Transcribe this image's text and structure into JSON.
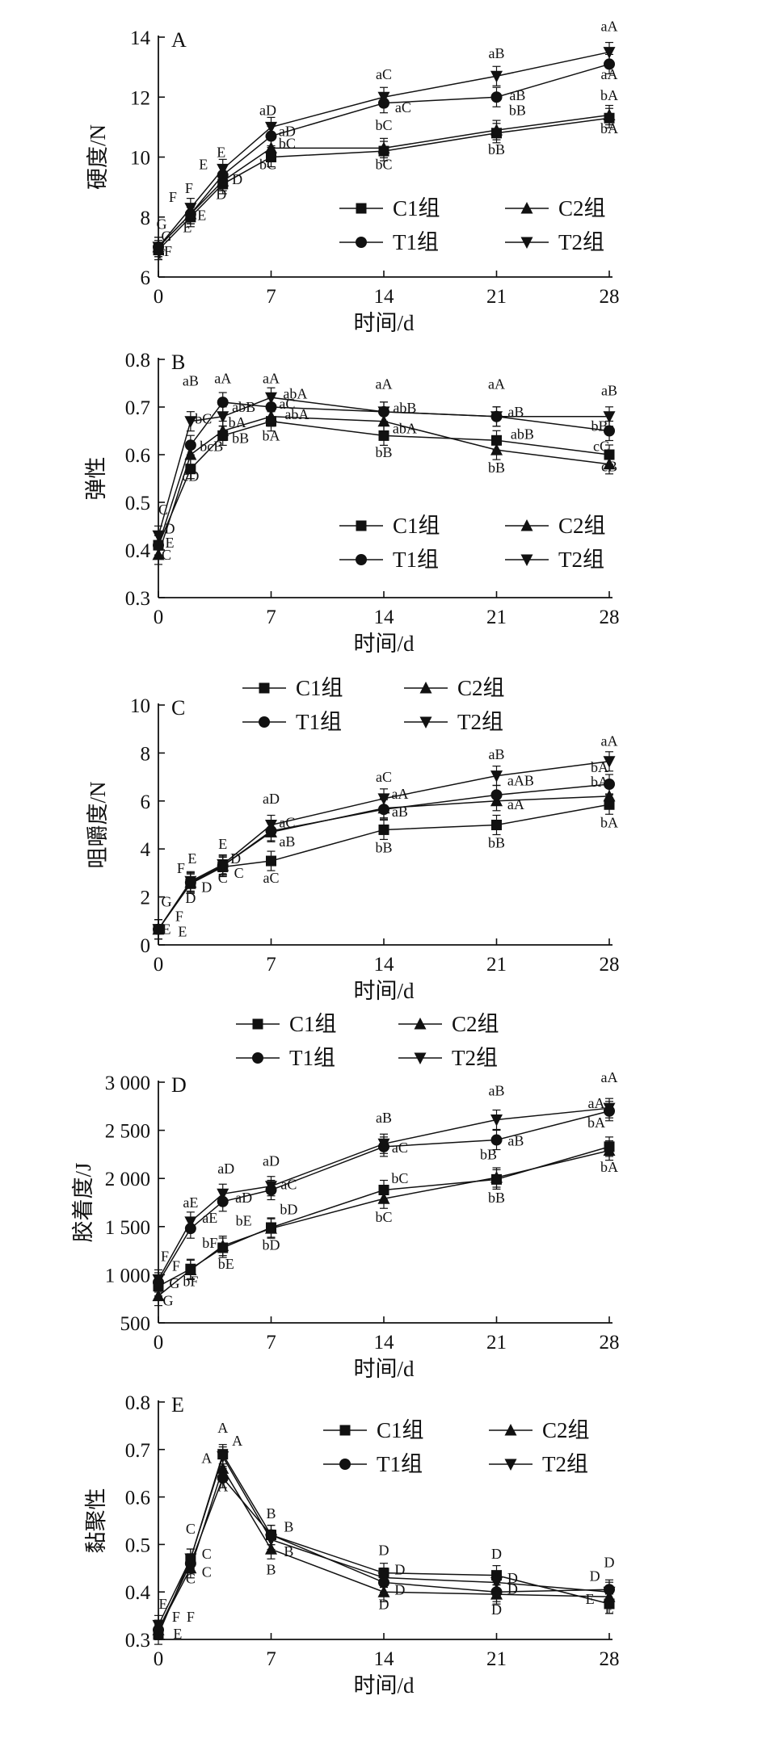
{
  "chart_data": [
    {
      "panel": "A",
      "type": "line",
      "xlabel": "时间/d",
      "ylabel": "硬度/N",
      "x": [
        0,
        2,
        4,
        7,
        14,
        21,
        28
      ],
      "xticks": [
        "0",
        "7",
        "14",
        "21",
        "28"
      ],
      "ylim": [
        6,
        14
      ],
      "yticks": [
        "6",
        "8",
        "10",
        "12",
        "14"
      ],
      "legend": "bottom-right",
      "series": [
        {
          "name": "C1组",
          "marker": "square",
          "values": [
            6.9,
            8.0,
            9.1,
            10.0,
            10.2,
            10.8,
            11.3
          ]
        },
        {
          "name": "C2组",
          "marker": "triangle-up",
          "values": [
            7.0,
            8.1,
            9.2,
            10.3,
            10.3,
            10.9,
            11.4
          ]
        },
        {
          "name": "T1组",
          "marker": "circle",
          "values": [
            7.0,
            8.1,
            9.4,
            10.7,
            11.8,
            12.0,
            13.1
          ]
        },
        {
          "name": "T2组",
          "marker": "triangle-down",
          "values": [
            7.0,
            8.3,
            9.6,
            11.0,
            12.0,
            12.7,
            13.5
          ]
        }
      ],
      "annotations": [
        {
          "text": "G",
          "x": 0.2,
          "y": 7.6
        },
        {
          "text": "G",
          "x": 0.5,
          "y": 7.2
        },
        {
          "text": "F",
          "x": 0.2,
          "y": 6.6
        },
        {
          "text": "F",
          "x": 0.6,
          "y": 6.7
        },
        {
          "text": "F",
          "x": 0.9,
          "y": 8.5
        },
        {
          "text": "F",
          "x": 1.9,
          "y": 8.8
        },
        {
          "text": "E",
          "x": 1.8,
          "y": 7.5
        },
        {
          "text": "E",
          "x": 2.7,
          "y": 7.9
        },
        {
          "text": "E",
          "x": 2.8,
          "y": 9.6
        },
        {
          "text": "E",
          "x": 3.9,
          "y": 10.0
        },
        {
          "text": "D",
          "x": 3.9,
          "y": 8.6
        },
        {
          "text": "D",
          "x": 4.9,
          "y": 9.1
        },
        {
          "text": "aD",
          "x": 6.8,
          "y": 11.4
        },
        {
          "text": "aD",
          "x": 8.0,
          "y": 10.7
        },
        {
          "text": "bC",
          "x": 8.0,
          "y": 10.3
        },
        {
          "text": "bC",
          "x": 6.8,
          "y": 9.6
        },
        {
          "text": "aC",
          "x": 14.0,
          "y": 12.6
        },
        {
          "text": "aC",
          "x": 15.2,
          "y": 11.5
        },
        {
          "text": "bC",
          "x": 14.0,
          "y": 10.9
        },
        {
          "text": "bC",
          "x": 14.0,
          "y": 9.6
        },
        {
          "text": "aB",
          "x": 21.0,
          "y": 13.3
        },
        {
          "text": "aB",
          "x": 22.3,
          "y": 11.9
        },
        {
          "text": "bB",
          "x": 22.3,
          "y": 11.4
        },
        {
          "text": "bB",
          "x": 21.0,
          "y": 10.1
        },
        {
          "text": "aA",
          "x": 28.0,
          "y": 14.2
        },
        {
          "text": "aA",
          "x": 28.0,
          "y": 12.6
        },
        {
          "text": "bA",
          "x": 28.0,
          "y": 11.9
        },
        {
          "text": "bA",
          "x": 28.0,
          "y": 10.8
        }
      ]
    },
    {
      "panel": "B",
      "type": "line",
      "xlabel": "时间/d",
      "ylabel": "弹性",
      "x": [
        0,
        2,
        4,
        7,
        14,
        21,
        28
      ],
      "xticks": [
        "0",
        "7",
        "14",
        "21",
        "28"
      ],
      "ylim": [
        0.3,
        0.8
      ],
      "yticks": [
        "0.3",
        "0.4",
        "0.5",
        "0.6",
        "0.7",
        "0.8"
      ],
      "legend": "bottom-right",
      "series": [
        {
          "name": "C1组",
          "marker": "square",
          "values": [
            0.41,
            0.57,
            0.64,
            0.67,
            0.64,
            0.63,
            0.6
          ]
        },
        {
          "name": "C2组",
          "marker": "triangle-up",
          "values": [
            0.39,
            0.6,
            0.65,
            0.68,
            0.67,
            0.61,
            0.58
          ]
        },
        {
          "name": "T1组",
          "marker": "circle",
          "values": [
            0.41,
            0.62,
            0.71,
            0.7,
            0.69,
            0.68,
            0.65
          ]
        },
        {
          "name": "T2组",
          "marker": "triangle-down",
          "values": [
            0.43,
            0.67,
            0.68,
            0.72,
            0.69,
            0.68,
            0.68
          ]
        }
      ],
      "annotations": [
        {
          "text": "aB",
          "x": 2.0,
          "y": 0.745
        },
        {
          "text": "bC",
          "x": 2.8,
          "y": 0.665
        },
        {
          "text": "bcB",
          "x": 3.3,
          "y": 0.608
        },
        {
          "text": "cD",
          "x": 2.0,
          "y": 0.545
        },
        {
          "text": "aA",
          "x": 4.0,
          "y": 0.75
        },
        {
          "text": "abB",
          "x": 5.3,
          "y": 0.69
        },
        {
          "text": "bA",
          "x": 4.9,
          "y": 0.658
        },
        {
          "text": "bB",
          "x": 5.1,
          "y": 0.625
        },
        {
          "text": "aA",
          "x": 7.0,
          "y": 0.75
        },
        {
          "text": "abA",
          "x": 8.5,
          "y": 0.718
        },
        {
          "text": "aC",
          "x": 8.0,
          "y": 0.697
        },
        {
          "text": "abA",
          "x": 8.6,
          "y": 0.675
        },
        {
          "text": "bA",
          "x": 7.0,
          "y": 0.63
        },
        {
          "text": "aA",
          "x": 14.0,
          "y": 0.738
        },
        {
          "text": "abB",
          "x": 15.3,
          "y": 0.688
        },
        {
          "text": "abA",
          "x": 15.3,
          "y": 0.645
        },
        {
          "text": "bB",
          "x": 14.0,
          "y": 0.595
        },
        {
          "text": "aA",
          "x": 21.0,
          "y": 0.738
        },
        {
          "text": "aB",
          "x": 22.2,
          "y": 0.68
        },
        {
          "text": "abB",
          "x": 22.6,
          "y": 0.633
        },
        {
          "text": "bB",
          "x": 21.0,
          "y": 0.563
        },
        {
          "text": "aB",
          "x": 28.0,
          "y": 0.725
        },
        {
          "text": "bB",
          "x": 27.4,
          "y": 0.65
        },
        {
          "text": "cC",
          "x": 27.5,
          "y": 0.608
        },
        {
          "text": "cB",
          "x": 28.0,
          "y": 0.565
        },
        {
          "text": "C",
          "x": 0.3,
          "y": 0.475
        },
        {
          "text": "D",
          "x": 0.7,
          "y": 0.435
        },
        {
          "text": "E",
          "x": 0.7,
          "y": 0.405
        },
        {
          "text": "C",
          "x": 0.5,
          "y": 0.38
        }
      ]
    },
    {
      "panel": "C",
      "type": "line",
      "xlabel": "时间/d",
      "ylabel": "咀嚼度/N",
      "x": [
        0,
        2,
        4,
        7,
        14,
        21,
        28
      ],
      "xticks": [
        "0",
        "7",
        "14",
        "21",
        "28"
      ],
      "ylim": [
        0,
        10
      ],
      "yticks": [
        "0",
        "2",
        "4",
        "6",
        "8",
        "10"
      ],
      "legend": "top",
      "series": [
        {
          "name": "C1组",
          "marker": "square",
          "values": [
            0.65,
            2.55,
            3.25,
            3.5,
            4.8,
            5.0,
            5.85
          ]
        },
        {
          "name": "C2组",
          "marker": "triangle-up",
          "values": [
            0.65,
            2.6,
            3.3,
            4.7,
            5.7,
            6.0,
            6.2
          ]
        },
        {
          "name": "T1组",
          "marker": "circle",
          "values": [
            0.65,
            2.6,
            3.3,
            4.75,
            5.65,
            6.25,
            6.7
          ]
        },
        {
          "name": "T2组",
          "marker": "triangle-down",
          "values": [
            0.65,
            2.65,
            3.35,
            5.0,
            6.1,
            7.05,
            7.65
          ]
        }
      ],
      "annotations": [
        {
          "text": "G",
          "x": 0.5,
          "y": 1.6
        },
        {
          "text": "F",
          "x": 1.3,
          "y": 1.0
        },
        {
          "text": "E",
          "x": 0.5,
          "y": 0.45
        },
        {
          "text": "E",
          "x": 1.5,
          "y": 0.35
        },
        {
          "text": "F",
          "x": 1.4,
          "y": 3.0
        },
        {
          "text": "E",
          "x": 2.1,
          "y": 3.4
        },
        {
          "text": "D",
          "x": 2.0,
          "y": 1.75
        },
        {
          "text": "D",
          "x": 3.0,
          "y": 2.2
        },
        {
          "text": "E",
          "x": 4.0,
          "y": 4.0
        },
        {
          "text": "D",
          "x": 4.8,
          "y": 3.4
        },
        {
          "text": "C",
          "x": 4.0,
          "y": 2.6
        },
        {
          "text": "C",
          "x": 5.0,
          "y": 2.8
        },
        {
          "text": "aD",
          "x": 7.0,
          "y": 5.9
        },
        {
          "text": "aC",
          "x": 8.0,
          "y": 4.9
        },
        {
          "text": "aB",
          "x": 8.0,
          "y": 4.1
        },
        {
          "text": "aC",
          "x": 7.0,
          "y": 2.6
        },
        {
          "text": "aC",
          "x": 14.0,
          "y": 6.8
        },
        {
          "text": "aA",
          "x": 15.0,
          "y": 6.1
        },
        {
          "text": "aB",
          "x": 15.0,
          "y": 5.35
        },
        {
          "text": "bB",
          "x": 14.0,
          "y": 3.85
        },
        {
          "text": "aB",
          "x": 21.0,
          "y": 7.75
        },
        {
          "text": "aAB",
          "x": 22.5,
          "y": 6.65
        },
        {
          "text": "aA",
          "x": 22.2,
          "y": 5.65
        },
        {
          "text": "bB",
          "x": 21.0,
          "y": 4.05
        },
        {
          "text": "aA",
          "x": 28.0,
          "y": 8.3
        },
        {
          "text": "bA",
          "x": 27.4,
          "y": 7.2
        },
        {
          "text": "bA",
          "x": 27.4,
          "y": 6.6
        },
        {
          "text": "bA",
          "x": 28.0,
          "y": 4.9
        }
      ]
    },
    {
      "panel": "D",
      "type": "line",
      "xlabel": "时间/d",
      "ylabel": "胶着度/J",
      "x": [
        0,
        2,
        4,
        7,
        14,
        21,
        28
      ],
      "xticks": [
        "0",
        "7",
        "14",
        "21",
        "28"
      ],
      "ylim": [
        500,
        3000
      ],
      "yticks": [
        "500",
        "1 000",
        "1 500",
        "2 000",
        "2 500",
        "3 000"
      ],
      "legend": "top",
      "series": [
        {
          "name": "C1组",
          "marker": "square",
          "values": [
            880,
            1060,
            1280,
            1490,
            1880,
            1990,
            2330
          ]
        },
        {
          "name": "C2组",
          "marker": "triangle-up",
          "values": [
            780,
            1050,
            1300,
            1480,
            1790,
            2010,
            2290
          ]
        },
        {
          "name": "T1组",
          "marker": "circle",
          "values": [
            920,
            1480,
            1760,
            1880,
            2330,
            2400,
            2700
          ]
        },
        {
          "name": "T2组",
          "marker": "triangle-down",
          "values": [
            950,
            1550,
            1840,
            1920,
            2360,
            2610,
            2730
          ]
        }
      ],
      "annotations": [
        {
          "text": "F",
          "x": 0.4,
          "y": 1140
        },
        {
          "text": "F",
          "x": 1.1,
          "y": 1040
        },
        {
          "text": "G",
          "x": 1.0,
          "y": 860
        },
        {
          "text": "G",
          "x": 0.6,
          "y": 680
        },
        {
          "text": "bF",
          "x": 2.0,
          "y": 880
        },
        {
          "text": "aE",
          "x": 2.0,
          "y": 1700
        },
        {
          "text": "aE",
          "x": 3.2,
          "y": 1540
        },
        {
          "text": "bF",
          "x": 3.2,
          "y": 1280
        },
        {
          "text": "aD",
          "x": 4.2,
          "y": 2050
        },
        {
          "text": "aD",
          "x": 5.3,
          "y": 1750
        },
        {
          "text": "bE",
          "x": 5.3,
          "y": 1510
        },
        {
          "text": "bE",
          "x": 4.2,
          "y": 1060
        },
        {
          "text": "aD",
          "x": 7.0,
          "y": 2130
        },
        {
          "text": "aC",
          "x": 8.1,
          "y": 1890
        },
        {
          "text": "bD",
          "x": 8.1,
          "y": 1630
        },
        {
          "text": "bD",
          "x": 7.0,
          "y": 1260
        },
        {
          "text": "aB",
          "x": 14.0,
          "y": 2580
        },
        {
          "text": "aC",
          "x": 15.0,
          "y": 2270
        },
        {
          "text": "bC",
          "x": 15.0,
          "y": 1950
        },
        {
          "text": "bC",
          "x": 14.0,
          "y": 1550
        },
        {
          "text": "aB",
          "x": 21.0,
          "y": 2860
        },
        {
          "text": "aB",
          "x": 22.2,
          "y": 2340
        },
        {
          "text": "bB",
          "x": 20.5,
          "y": 2200
        },
        {
          "text": "bB",
          "x": 21.0,
          "y": 1750
        },
        {
          "text": "aA",
          "x": 28.0,
          "y": 3000
        },
        {
          "text": "aA",
          "x": 27.2,
          "y": 2730
        },
        {
          "text": "bA",
          "x": 27.2,
          "y": 2530
        },
        {
          "text": "bA",
          "x": 28.0,
          "y": 2070
        }
      ]
    },
    {
      "panel": "E",
      "type": "line",
      "xlabel": "时间/d",
      "ylabel": "黏聚性",
      "x": [
        0,
        2,
        4,
        7,
        14,
        21,
        28
      ],
      "xticks": [
        "0",
        "7",
        "14",
        "21",
        "28"
      ],
      "ylim": [
        0.3,
        0.8
      ],
      "yticks": [
        "0.3",
        "0.4",
        "0.5",
        "0.6",
        "0.7",
        "0.8"
      ],
      "legend": "top-right",
      "series": [
        {
          "name": "C1组",
          "marker": "square",
          "values": [
            0.31,
            0.47,
            0.69,
            0.52,
            0.44,
            0.435,
            0.375
          ]
        },
        {
          "name": "C2组",
          "marker": "triangle-up",
          "values": [
            0.32,
            0.45,
            0.66,
            0.49,
            0.4,
            0.395,
            0.39
          ]
        },
        {
          "name": "T1组",
          "marker": "circle",
          "values": [
            0.32,
            0.46,
            0.64,
            0.52,
            0.42,
            0.4,
            0.405
          ]
        },
        {
          "name": "T2组",
          "marker": "triangle-down",
          "values": [
            0.33,
            0.47,
            0.685,
            0.51,
            0.43,
            0.42,
            0.4
          ]
        }
      ],
      "annotations": [
        {
          "text": "E",
          "x": 0.3,
          "y": 0.365
        },
        {
          "text": "F",
          "x": 1.1,
          "y": 0.337
        },
        {
          "text": "F",
          "x": 2.0,
          "y": 0.337
        },
        {
          "text": "E",
          "x": 1.2,
          "y": 0.302
        },
        {
          "text": "C",
          "x": 2.0,
          "y": 0.523
        },
        {
          "text": "C",
          "x": 3.0,
          "y": 0.47
        },
        {
          "text": "C",
          "x": 2.0,
          "y": 0.418
        },
        {
          "text": "C",
          "x": 3.0,
          "y": 0.432
        },
        {
          "text": "A",
          "x": 4.0,
          "y": 0.735
        },
        {
          "text": "A",
          "x": 4.9,
          "y": 0.708
        },
        {
          "text": "A",
          "x": 3.0,
          "y": 0.672
        },
        {
          "text": "A",
          "x": 4.0,
          "y": 0.612
        },
        {
          "text": "B",
          "x": 7.0,
          "y": 0.555
        },
        {
          "text": "B",
          "x": 8.1,
          "y": 0.527
        },
        {
          "text": "B",
          "x": 8.1,
          "y": 0.475
        },
        {
          "text": "B",
          "x": 7.0,
          "y": 0.437
        },
        {
          "text": "D",
          "x": 14.0,
          "y": 0.478
        },
        {
          "text": "D",
          "x": 15.0,
          "y": 0.437
        },
        {
          "text": "D",
          "x": 15.0,
          "y": 0.394
        },
        {
          "text": "D",
          "x": 14.0,
          "y": 0.364
        },
        {
          "text": "D",
          "x": 21.0,
          "y": 0.47
        },
        {
          "text": "D",
          "x": 22.0,
          "y": 0.419
        },
        {
          "text": "D",
          "x": 22.0,
          "y": 0.396
        },
        {
          "text": "D",
          "x": 21.0,
          "y": 0.353
        },
        {
          "text": "D",
          "x": 28.0,
          "y": 0.452
        },
        {
          "text": "D",
          "x": 27.1,
          "y": 0.423
        },
        {
          "text": "E",
          "x": 26.8,
          "y": 0.375
        },
        {
          "text": "E",
          "x": 28.0,
          "y": 0.354
        }
      ]
    }
  ]
}
